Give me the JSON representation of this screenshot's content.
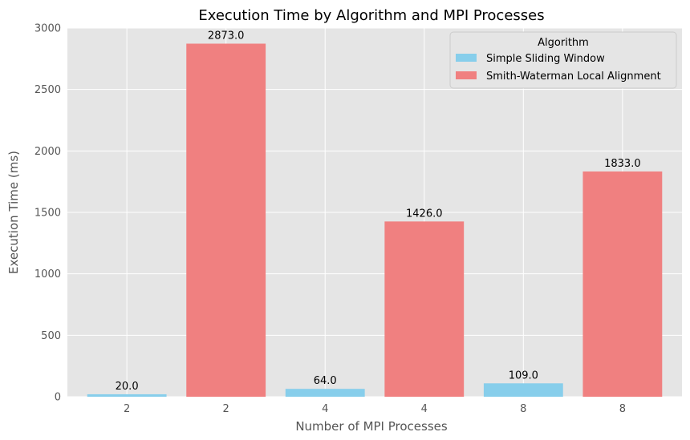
{
  "chart_data": {
    "type": "bar",
    "title": "Execution Time by Algorithm and MPI Processes",
    "xlabel": "Number of MPI Processes",
    "ylabel": "Execution Time (ms)",
    "ylim": [
      0,
      3000
    ],
    "yticks": [
      0,
      500,
      1000,
      1500,
      2000,
      2500,
      3000
    ],
    "grid": true,
    "legend": {
      "title": "Algorithm",
      "placement": "top-right"
    },
    "series": [
      {
        "name": "Simple Sliding Window",
        "color": "#87CEEB"
      },
      {
        "name": "Smith-Waterman Local Alignment",
        "color": "#F08080"
      }
    ],
    "bars": [
      {
        "category": "2",
        "series": 0,
        "value": 20.0,
        "label": "20.0"
      },
      {
        "category": "2",
        "series": 1,
        "value": 2873.0,
        "label": "2873.0"
      },
      {
        "category": "4",
        "series": 0,
        "value": 64.0,
        "label": "64.0"
      },
      {
        "category": "4",
        "series": 1,
        "value": 1426.0,
        "label": "1426.0"
      },
      {
        "category": "8",
        "series": 0,
        "value": 109.0,
        "label": "109.0"
      },
      {
        "category": "8",
        "series": 1,
        "value": 1833.0,
        "label": "1833.0"
      }
    ]
  }
}
